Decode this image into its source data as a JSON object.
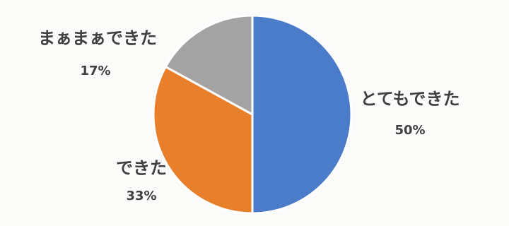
{
  "chart_data": {
    "type": "pie",
    "start_angle_deg": 0,
    "direction": "clockwise",
    "slices": [
      {
        "label": "とてもできた",
        "value": 50,
        "value_label": "50%",
        "color": "#4a7cc9"
      },
      {
        "label": "できた",
        "value": 33,
        "value_label": "33%",
        "color": "#e87f2a"
      },
      {
        "label": "まぁまぁできた",
        "value": 17,
        "value_label": "17%",
        "color": "#a3a3a3"
      }
    ],
    "legend": "none",
    "data_labels": "outside"
  }
}
